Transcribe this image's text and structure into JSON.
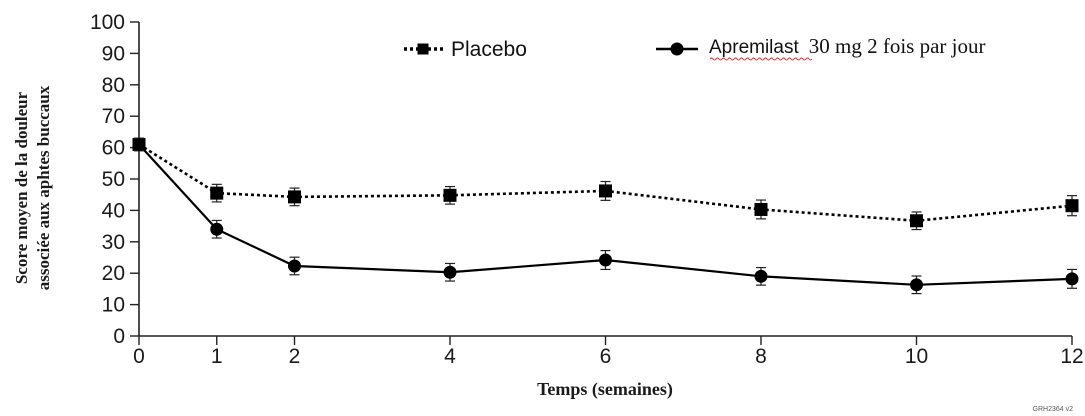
{
  "chart_data": {
    "type": "line",
    "xlabel": "Temps (semaines)",
    "ylabel_line1": "Score moyen de la douleur",
    "ylabel_line2": "associée aux aphtes buccaux",
    "ylim": [
      0,
      100
    ],
    "yticks": [
      0,
      10,
      20,
      30,
      40,
      50,
      60,
      70,
      80,
      90,
      100
    ],
    "xlim": [
      0,
      12
    ],
    "xticks": [
      0,
      1,
      2,
      4,
      6,
      8,
      10,
      12
    ],
    "x": [
      0,
      1,
      2,
      4,
      6,
      8,
      10,
      12
    ],
    "grid": false,
    "legend_position": "top",
    "series": [
      {
        "name": "Placebo",
        "marker": "square",
        "line_style": "dotted",
        "values": [
          61,
          45.5,
          44.3,
          44.8,
          46.2,
          40.3,
          36.7,
          41.5
        ],
        "error": [
          2,
          2.8,
          2.8,
          2.8,
          3,
          3,
          2.8,
          3.2
        ]
      },
      {
        "name": "Apremilast 30 mg 2 fois par jour",
        "name_word": "Apremilast",
        "name_rest": "30 mg 2 fois par jour",
        "marker": "circle",
        "line_style": "solid",
        "values": [
          61,
          34,
          22.3,
          20.3,
          24.2,
          19,
          16.3,
          18.2
        ],
        "error": [
          2,
          2.8,
          2.8,
          2.8,
          3,
          2.8,
          2.8,
          3
        ]
      }
    ],
    "footnote": "GRH2364 v2"
  }
}
